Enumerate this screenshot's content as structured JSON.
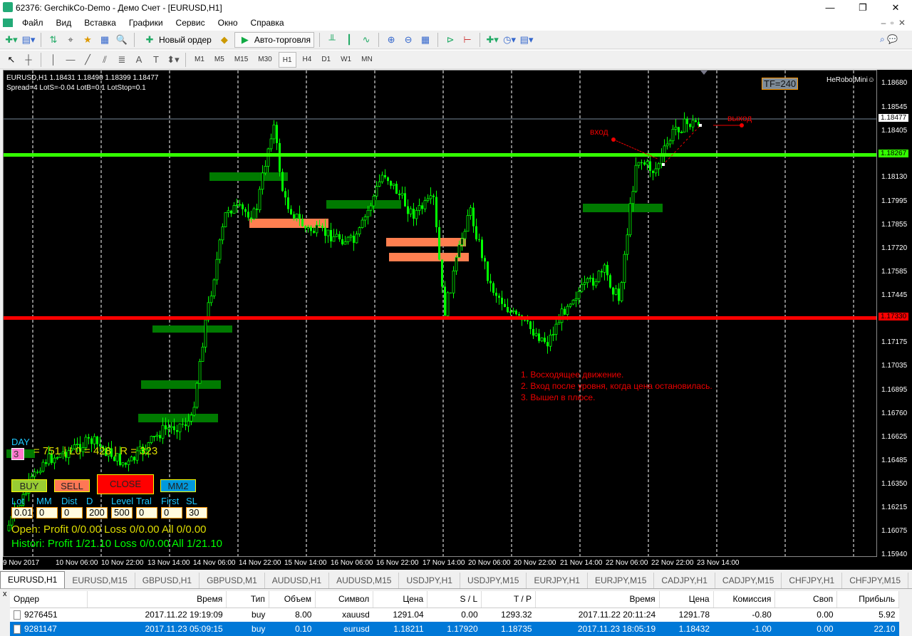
{
  "window": {
    "title": "62376: GerchikCo-Demo - Демо Счет - [EURUSD,H1]"
  },
  "menu": [
    "Файл",
    "Вид",
    "Вставка",
    "Графики",
    "Сервис",
    "Окно",
    "Справка"
  ],
  "toolbar": {
    "new_order": "Новый ордер",
    "auto_trading": "Авто-торговля"
  },
  "timeframes": [
    "M1",
    "M5",
    "M15",
    "M30",
    "H1",
    "H4",
    "D1",
    "W1",
    "MN"
  ],
  "active_timeframe": "H1",
  "chart": {
    "header": "EURUSD,H1  1.18431 1.18490 1.18399 1.18477",
    "info": "Spread=4  LotS=-0.04  LotB=0.1  LotStop=0.1",
    "tf_badge": "TF=240",
    "robot": "HeRobotMini☺",
    "price_labels": [
      "1.18680",
      "1.18545",
      "1.18405",
      "1.18130",
      "1.17995",
      "1.17855",
      "1.17720",
      "1.17585",
      "1.17445",
      "1.17175",
      "1.17035",
      "1.16895",
      "1.16760",
      "1.16625",
      "1.16485",
      "1.16350",
      "1.16215",
      "1.16075",
      "1.15940"
    ],
    "current_price": "1.18477",
    "green_level": "1.18267",
    "red_level": "1.17330",
    "time_labels": [
      "9 Nov 2017",
      "10 Nov 06:00",
      "10 Nov 22:00",
      "13 Nov 14:00",
      "14 Nov 06:00",
      "14 Nov 22:00",
      "15 Nov 14:00",
      "16 Nov 06:00",
      "16 Nov 22:00",
      "17 Nov 14:00",
      "20 Nov 06:00",
      "20 Nov 22:00",
      "21 Nov 14:00",
      "22 Nov 06:00",
      "22 Nov 22:00",
      "23 Nov 14:00"
    ],
    "entry_label": "вход",
    "exit_label": "выход",
    "notes": [
      "1. Восходящее движение.",
      "2. Вход после уровня, когда цена остановилась.",
      "3. Вышел в плюсе."
    ],
    "colors": {
      "bull": "#00ff00",
      "support": "#33ff00",
      "resistance": "#ff0000",
      "zone_buy": "#007a00",
      "zone_sell": "#ff7f50"
    }
  },
  "panel": {
    "day": "DAY",
    "day_value": "3",
    "stats": "= 751 | L0 = 428 | R = 323",
    "buy": "BUY",
    "sell": "SELL",
    "close": "CLOSE",
    "mm2": "MM2",
    "fields": [
      {
        "label": "Lot",
        "value": "0.01"
      },
      {
        "label": "MM",
        "value": "0"
      },
      {
        "label": "Dist",
        "value": "0"
      },
      {
        "label": "D",
        "value": "200"
      },
      {
        "label": "Level",
        "value": "500"
      },
      {
        "label": "Tral",
        "value": "0"
      },
      {
        "label": "First",
        "value": "0"
      },
      {
        "label": "SL",
        "value": "30"
      }
    ],
    "open": "Open:  Profit 0/0.00  Loss 0/0.00  All 0/0.00",
    "history": "Histori: Profit 1/21.10  Loss 0/0.00  All 1/21.10"
  },
  "tabs": [
    "EURUSD,H1",
    "EURUSD,M15",
    "GBPUSD,H1",
    "GBPUSD,M1",
    "AUDUSD,H1",
    "AUDUSD,M15",
    "USDJPY,H1",
    "USDJPY,M15",
    "EURJPY,H1",
    "EURJPY,M15",
    "CADJPY,H1",
    "CADJPY,M15",
    "CHFJPY,H1",
    "CHFJPY,M15",
    "US"
  ],
  "orders": {
    "columns": [
      "Ордер",
      "Время",
      "Тип",
      "Объем",
      "Символ",
      "Цена",
      "S / L",
      "T / P",
      "Время",
      "Цена",
      "Комиссия",
      "Своп",
      "Прибыль"
    ],
    "rows": [
      [
        "9276451",
        "2017.11.22 19:19:09",
        "buy",
        "8.00",
        "xauusd",
        "1291.04",
        "0.00",
        "1293.32",
        "2017.11.22 20:11:24",
        "1291.78",
        "-0.80",
        "0.00",
        "5.92"
      ],
      [
        "9281147",
        "2017.11.23 05:09:15",
        "buy",
        "0.10",
        "eurusd",
        "1.18211",
        "1.17920",
        "1.18735",
        "2017.11.23 18:05:19",
        "1.18432",
        "-1.00",
        "0.00",
        "22.10"
      ]
    ]
  }
}
